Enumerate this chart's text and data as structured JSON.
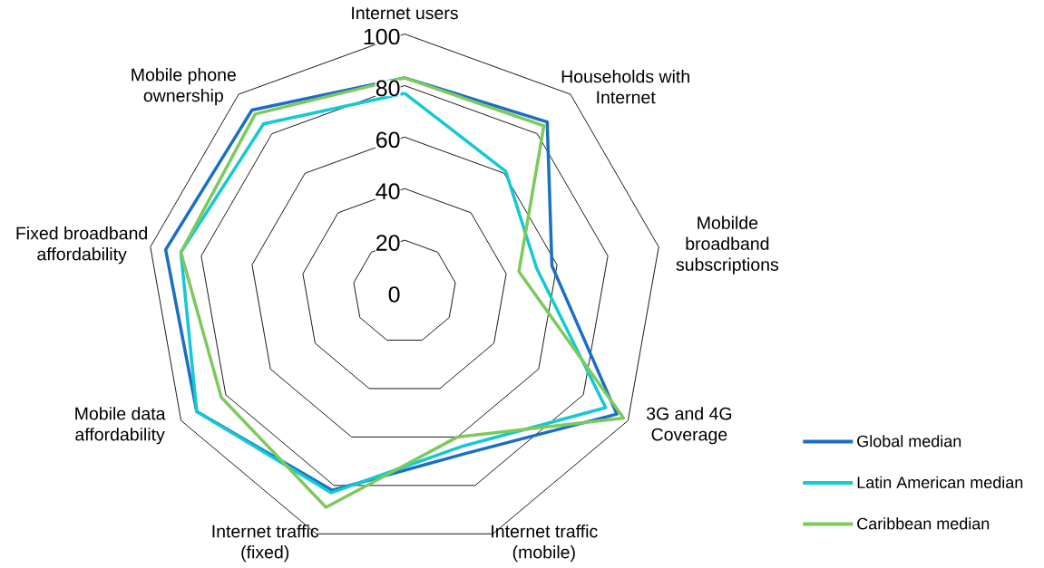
{
  "chart_data": {
    "type": "radar",
    "categories": [
      "Internet users",
      "Households with Internet",
      "Mobilde broadband subscriptions",
      "3G and 4G Coverage",
      "Internet traffic (mobile)",
      "Internet traffic (fixed)",
      "Mobile data affordability",
      "Fixed broadband affordability",
      "Mobile phone ownership"
    ],
    "ylim": [
      0,
      100
    ],
    "yticks": [
      0,
      20,
      40,
      60,
      80,
      100
    ],
    "grid": true,
    "legend": "bottom right",
    "series": [
      {
        "name": "Global median",
        "color": "#1a6fc4",
        "values": [
          83,
          86,
          58,
          95,
          67,
          82,
          93,
          94,
          92
        ]
      },
      {
        "name": "Latin American median",
        "color": "#14c8d4",
        "values": [
          77,
          61,
          52,
          90,
          64,
          83,
          93,
          88,
          85
        ]
      },
      {
        "name": "Caribbean median",
        "color": "#7cc95c",
        "values": [
          83,
          84,
          45,
          98,
          60,
          89,
          82,
          88,
          90
        ]
      }
    ]
  }
}
